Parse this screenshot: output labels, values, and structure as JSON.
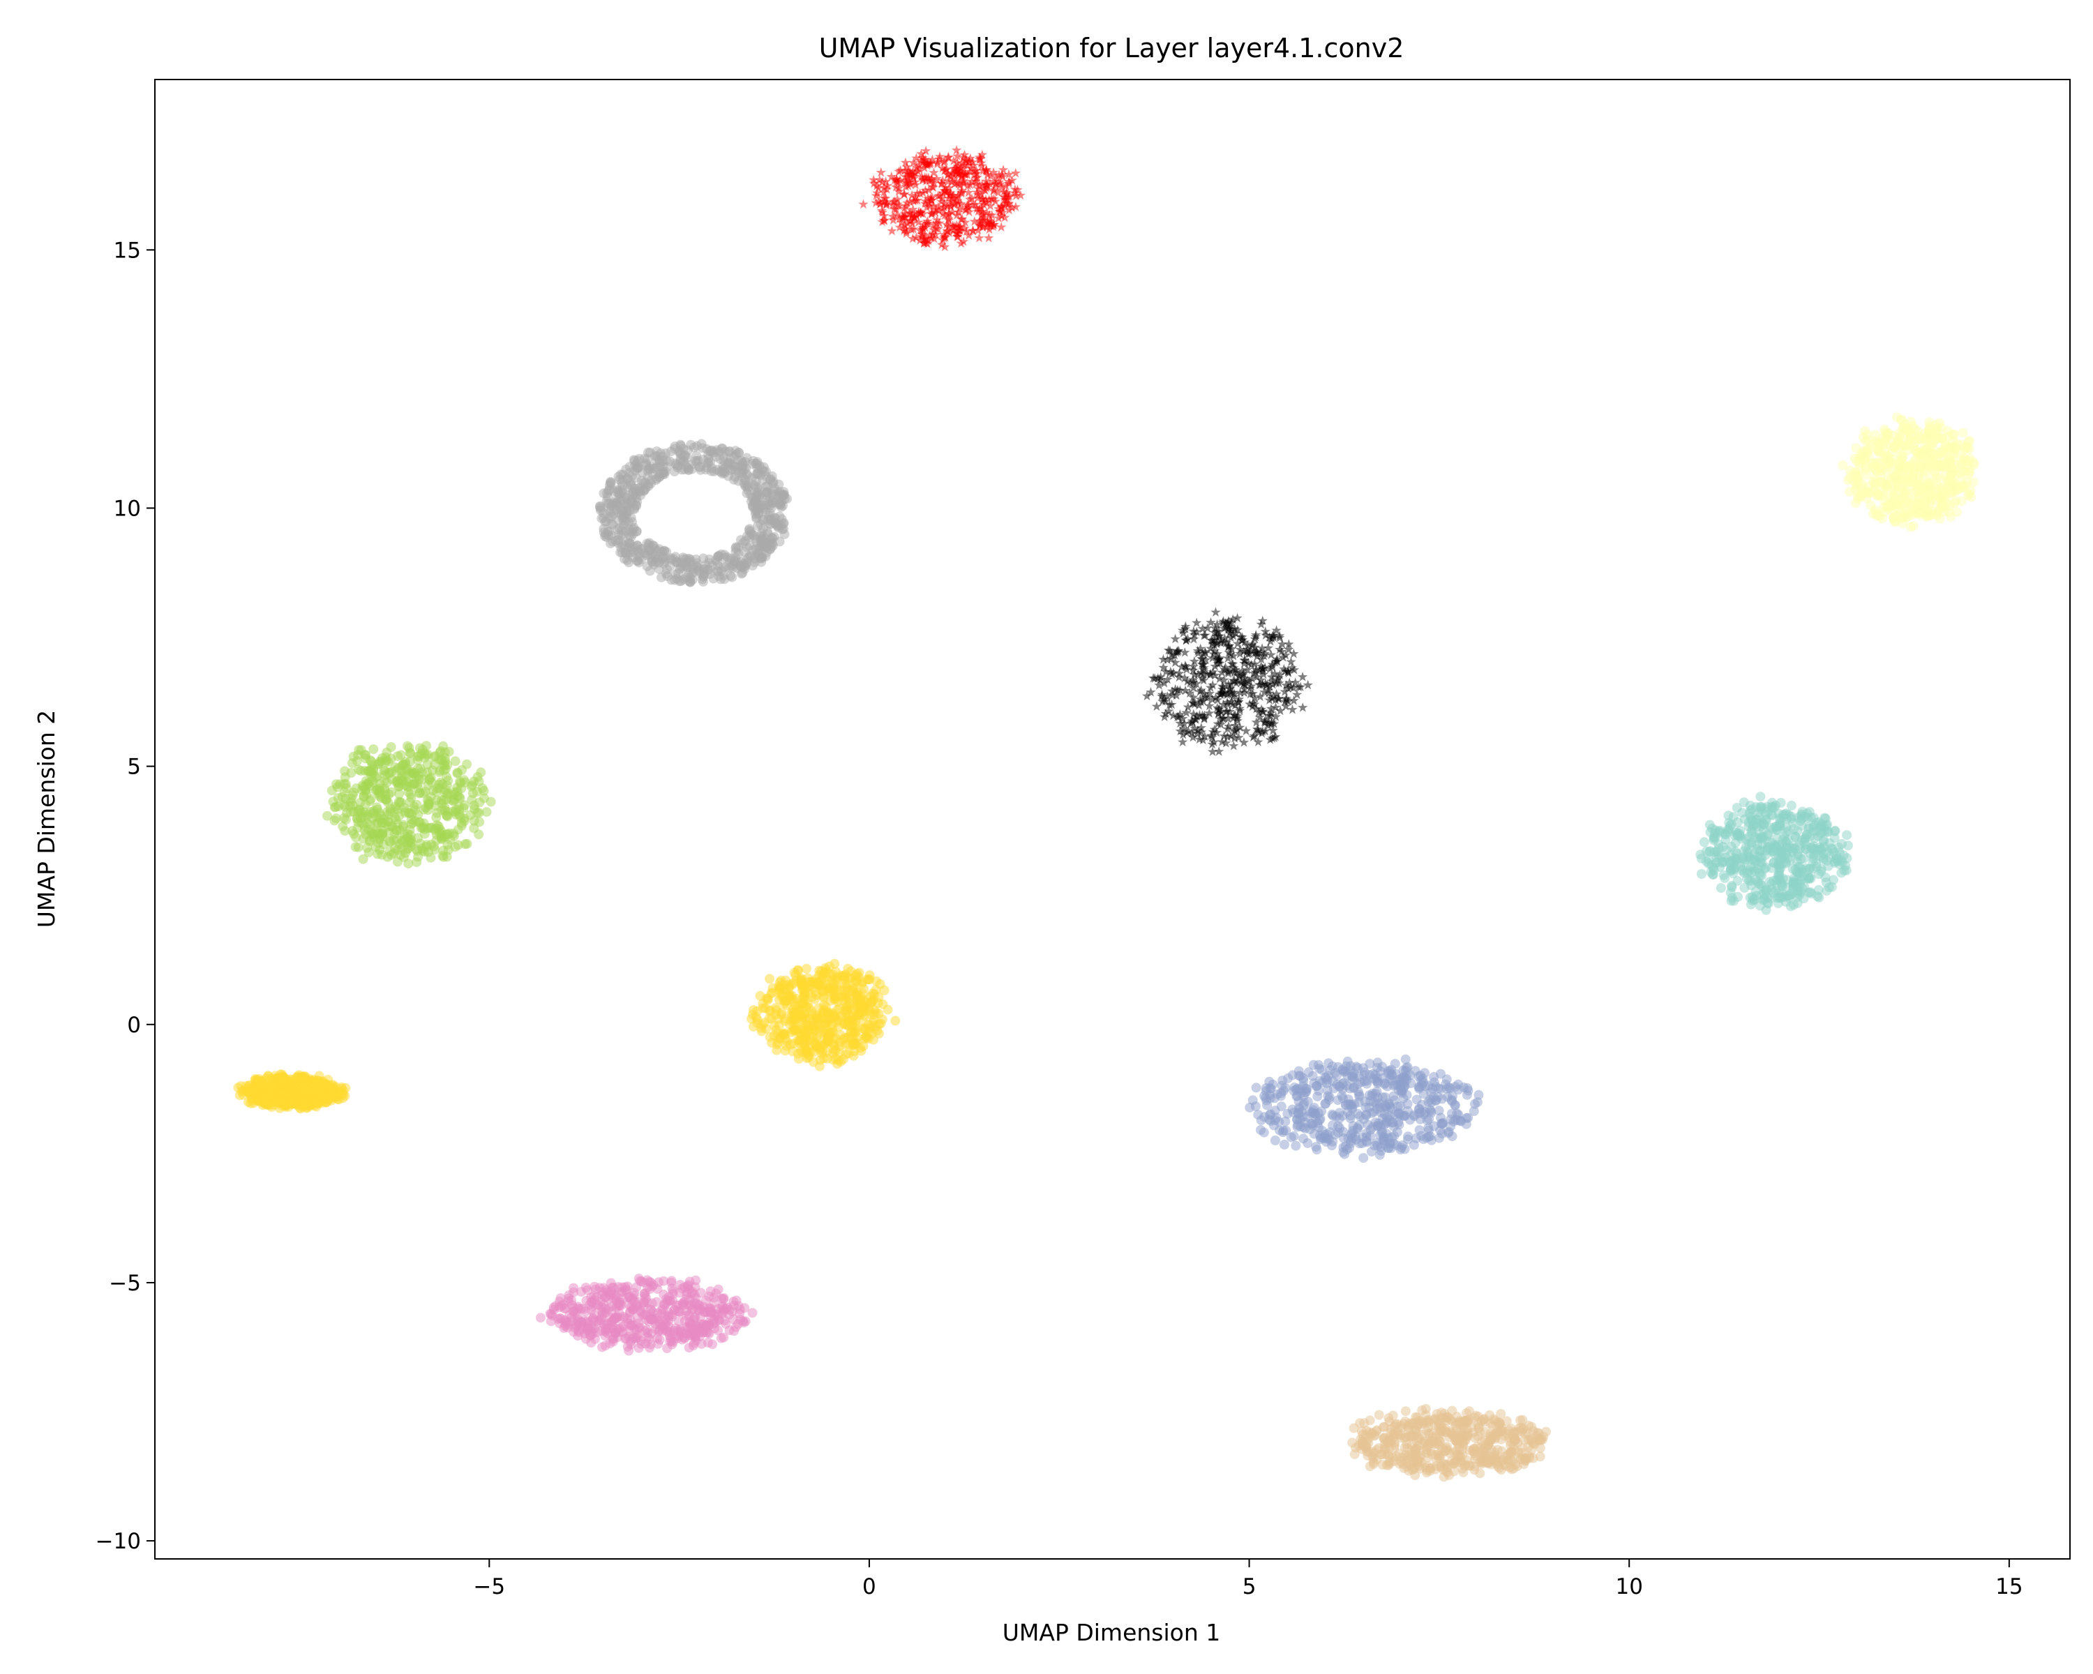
{
  "chart_data": {
    "type": "scatter",
    "title": "UMAP Visualization for Layer layer4.1.conv2",
    "xlabel": "UMAP Dimension 1",
    "ylabel": "UMAP Dimension 2",
    "xlim": [
      -9.4,
      15.8
    ],
    "ylim": [
      -10.35,
      18.3
    ],
    "x_ticks": [
      -5,
      0,
      5,
      10,
      15
    ],
    "x_tick_labels": [
      "−5",
      "0",
      "5",
      "10",
      "15"
    ],
    "y_ticks": [
      -10,
      -5,
      0,
      5,
      10,
      15
    ],
    "y_tick_labels": [
      "−10",
      "−5",
      "0",
      "5",
      "10",
      "15"
    ],
    "grid": false,
    "legend": "none",
    "marker_alpha": 0.5,
    "clusters": [
      {
        "color": "#ff0000",
        "marker": "star",
        "center": [
          1.0,
          16.0
        ],
        "x_range": [
          -0.1,
          2.1
        ],
        "y_range": [
          15.0,
          17.0
        ]
      },
      {
        "color": "#aaaaaa",
        "marker": "circle",
        "shape": "ring",
        "center": [
          -2.3,
          9.9
        ],
        "x_range": [
          -3.7,
          -1.2
        ],
        "y_range": [
          8.5,
          11.2
        ]
      },
      {
        "color": "#ffffb3",
        "marker": "circle",
        "center": [
          13.7,
          10.7
        ],
        "x_range": [
          12.8,
          14.7
        ],
        "y_range": [
          9.6,
          11.9
        ]
      },
      {
        "color": "#000000",
        "marker": "star",
        "center": [
          4.7,
          6.6
        ],
        "x_range": [
          3.6,
          5.8
        ],
        "y_range": [
          5.6,
          8.5
        ]
      },
      {
        "color": "#a6d854",
        "marker": "circle",
        "center": [
          -6.1,
          4.3
        ],
        "x_range": [
          -7.4,
          -5.1
        ],
        "y_range": [
          3.0,
          5.6
        ]
      },
      {
        "color": "#8dd3c7",
        "marker": "circle",
        "center": [
          11.9,
          3.3
        ],
        "x_range": [
          10.8,
          12.9
        ],
        "y_range": [
          2.1,
          4.4
        ]
      },
      {
        "color": "#ffd92f",
        "marker": "circle",
        "center": [
          -0.6,
          0.2
        ],
        "x_range": [
          -1.6,
          0.4
        ],
        "y_range": [
          -0.9,
          1.2
        ]
      },
      {
        "color": "#ffd92f",
        "marker": "circle",
        "center": [
          -7.6,
          -1.3
        ],
        "x_range": [
          -8.3,
          -6.8
        ],
        "y_range": [
          -1.6,
          -0.9
        ]
      },
      {
        "color": "#8da0cb",
        "marker": "circle",
        "center": [
          6.5,
          -1.6
        ],
        "x_range": [
          4.8,
          8.1
        ],
        "y_range": [
          -2.4,
          -0.4
        ]
      },
      {
        "color": "#e78ac3",
        "marker": "circle",
        "center": [
          -2.9,
          -5.6
        ],
        "x_range": [
          -4.3,
          -1.4
        ],
        "y_range": [
          -6.4,
          -4.9
        ]
      },
      {
        "color": "#e5c494",
        "marker": "circle",
        "center": [
          7.6,
          -8.1
        ],
        "x_range": [
          6.0,
          9.0
        ],
        "y_range": [
          -8.9,
          -7.5
        ]
      }
    ]
  }
}
